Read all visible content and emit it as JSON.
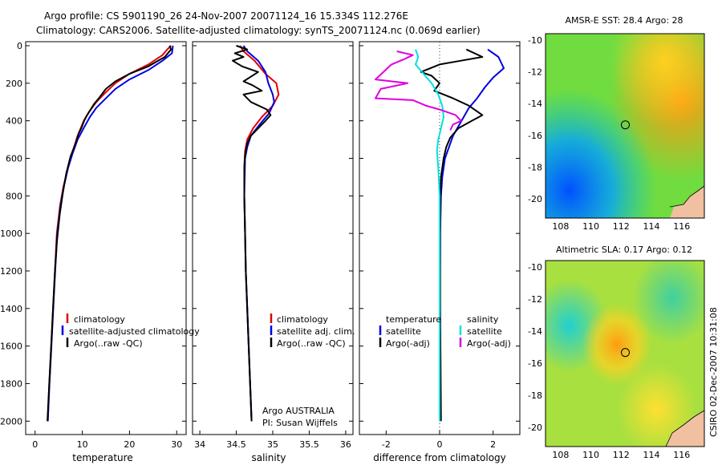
{
  "header": {
    "line1": "Argo profile: CS 5901190_26 24-Nov-2007 20071124_16 15.334S 112.276E",
    "line2": "Climatology: CARS2006. Satellite-adjusted climatology: synTS_20071124.nc (0.069d earlier)"
  },
  "footer": {
    "credit": "CSIRO 02-Dec-2007 10:31:08"
  },
  "colors": {
    "climatology": "#e00000",
    "satellite": "#0000e0",
    "argo": "#000000",
    "sat_salinity": "#00e0e0",
    "argo_salinity": "#e000e0"
  },
  "chart_data": [
    {
      "id": "temperature",
      "type": "line",
      "xlabel": "temperature",
      "ylabel": "",
      "xlim": [
        -2,
        32
      ],
      "ylim": [
        0,
        2050
      ],
      "y_reversed": true,
      "xticks": [
        "0",
        "10",
        "20",
        "30"
      ],
      "yticks": [
        "0",
        "200",
        "400",
        "600",
        "800",
        "1000",
        "1200",
        "1400",
        "1600",
        "1800",
        "2000"
      ],
      "legend": [
        "climatology",
        "satellite-adjusted climatology",
        "Argo(..raw -QC)"
      ],
      "series": [
        {
          "name": "climatology",
          "color": "#e00000",
          "points": [
            [
              28.8,
              0
            ],
            [
              28,
              20
            ],
            [
              27,
              50
            ],
            [
              24,
              100
            ],
            [
              20,
              150
            ],
            [
              17,
              200
            ],
            [
              14.5,
              260
            ],
            [
              13,
              300
            ],
            [
              11.5,
              350
            ],
            [
              10.3,
              400
            ],
            [
              9,
              480
            ],
            [
              8,
              560
            ],
            [
              7,
              650
            ],
            [
              6,
              750
            ],
            [
              5.3,
              850
            ],
            [
              4.6,
              1000
            ],
            [
              4.2,
              1200
            ],
            [
              3.8,
              1400
            ],
            [
              3.4,
              1600
            ],
            [
              3.0,
              1800
            ],
            [
              2.7,
              2000
            ]
          ]
        },
        {
          "name": "satellite",
          "color": "#0000e0",
          "points": [
            [
              29.2,
              0
            ],
            [
              29,
              40
            ],
            [
              27,
              80
            ],
            [
              24,
              130
            ],
            [
              20,
              180
            ],
            [
              17,
              230
            ],
            [
              15,
              280
            ],
            [
              13,
              330
            ],
            [
              11.6,
              380
            ],
            [
              10.5,
              430
            ],
            [
              9,
              500
            ],
            [
              8,
              570
            ],
            [
              7,
              650
            ],
            [
              6.1,
              750
            ],
            [
              5.4,
              850
            ],
            [
              4.7,
              1000
            ],
            [
              4.25,
              1200
            ],
            [
              3.85,
              1400
            ],
            [
              3.45,
              1600
            ],
            [
              3.05,
              1800
            ],
            [
              2.7,
              2000
            ]
          ]
        },
        {
          "name": "Argo",
          "color": "#000000",
          "points": [
            [
              28.5,
              0
            ],
            [
              28.8,
              20
            ],
            [
              27.5,
              60
            ],
            [
              24,
              110
            ],
            [
              20,
              150
            ],
            [
              17,
              190
            ],
            [
              15,
              230
            ],
            [
              13.5,
              280
            ],
            [
              12.5,
              310
            ],
            [
              12,
              330
            ],
            [
              11,
              370
            ],
            [
              10.4,
              400
            ],
            [
              9.8,
              440
            ],
            [
              9.2,
              470
            ],
            [
              8.6,
              520
            ],
            [
              7.5,
              590
            ],
            [
              6.6,
              680
            ],
            [
              5.9,
              780
            ],
            [
              5.2,
              900
            ],
            [
              4.6,
              1050
            ],
            [
              4.2,
              1200
            ],
            [
              3.8,
              1400
            ],
            [
              3.4,
              1600
            ],
            [
              3.0,
              1800
            ],
            [
              2.6,
              2000
            ]
          ]
        }
      ]
    },
    {
      "id": "salinity",
      "type": "line",
      "xlabel": "salinity",
      "ylabel": "",
      "xlim": [
        33.9,
        36.1
      ],
      "ylim": [
        0,
        2050
      ],
      "y_reversed": true,
      "xticks": [
        "34",
        "34.5",
        "35",
        "35.5",
        "36"
      ],
      "legend": [
        "climatology",
        "satellite adj. clim.",
        "Argo(..raw -QC)"
      ],
      "annotation": [
        "Argo AUSTRALIA",
        "PI: Susan Wijffels"
      ],
      "series": [
        {
          "name": "climatology",
          "color": "#e00000",
          "points": [
            [
              34.55,
              0
            ],
            [
              34.6,
              30
            ],
            [
              34.75,
              80
            ],
            [
              34.9,
              150
            ],
            [
              35.05,
              200
            ],
            [
              35.08,
              260
            ],
            [
              35.0,
              320
            ],
            [
              34.85,
              380
            ],
            [
              34.73,
              440
            ],
            [
              34.65,
              500
            ],
            [
              34.62,
              560
            ],
            [
              34.61,
              650
            ],
            [
              34.61,
              800
            ],
            [
              34.62,
              1000
            ],
            [
              34.63,
              1200
            ],
            [
              34.65,
              1400
            ],
            [
              34.67,
              1600
            ],
            [
              34.69,
              1800
            ],
            [
              34.71,
              2000
            ]
          ]
        },
        {
          "name": "satellite",
          "color": "#0000e0",
          "points": [
            [
              34.6,
              0
            ],
            [
              34.65,
              30
            ],
            [
              34.8,
              80
            ],
            [
              34.9,
              140
            ],
            [
              34.94,
              200
            ],
            [
              35.0,
              260
            ],
            [
              35.02,
              300
            ],
            [
              34.95,
              360
            ],
            [
              34.82,
              420
            ],
            [
              34.7,
              480
            ],
            [
              34.65,
              540
            ],
            [
              34.62,
              600
            ],
            [
              34.61,
              800
            ],
            [
              34.62,
              1000
            ],
            [
              34.63,
              1200
            ],
            [
              34.65,
              1400
            ],
            [
              34.67,
              1600
            ],
            [
              34.69,
              1800
            ],
            [
              34.71,
              2000
            ]
          ]
        },
        {
          "name": "Argo",
          "color": "#000000",
          "points": [
            [
              34.5,
              0
            ],
            [
              34.65,
              20
            ],
            [
              34.48,
              40
            ],
            [
              34.6,
              60
            ],
            [
              34.45,
              80
            ],
            [
              34.58,
              110
            ],
            [
              34.8,
              140
            ],
            [
              34.68,
              170
            ],
            [
              34.6,
              190
            ],
            [
              34.72,
              210
            ],
            [
              34.85,
              240
            ],
            [
              34.6,
              260
            ],
            [
              34.7,
              300
            ],
            [
              34.92,
              340
            ],
            [
              34.97,
              370
            ],
            [
              34.9,
              400
            ],
            [
              34.8,
              440
            ],
            [
              34.7,
              480
            ],
            [
              34.65,
              520
            ],
            [
              34.62,
              580
            ],
            [
              34.61,
              650
            ],
            [
              34.61,
              800
            ],
            [
              34.62,
              1000
            ],
            [
              34.63,
              1200
            ],
            [
              34.65,
              1400
            ],
            [
              34.67,
              1600
            ],
            [
              34.69,
              1800
            ],
            [
              34.71,
              2000
            ]
          ]
        }
      ]
    },
    {
      "id": "difference",
      "type": "line",
      "xlabel": "difference from climatology",
      "ylabel": "",
      "xlim": [
        -3,
        3
      ],
      "ylim": [
        0,
        2050
      ],
      "y_reversed": true,
      "xticks": [
        "-2",
        "0",
        "2"
      ],
      "legend_left": {
        "title": "temperature",
        "items": [
          "satellite",
          "Argo(-adj)"
        ]
      },
      "legend_right": {
        "title": "salinity",
        "items": [
          "satellite",
          "Argo(-adj)"
        ]
      },
      "series": [
        {
          "name": "temperature satellite",
          "color": "#0000e0",
          "points": [
            [
              1.8,
              20
            ],
            [
              2.2,
              60
            ],
            [
              2.4,
              120
            ],
            [
              2.0,
              170
            ],
            [
              1.7,
              220
            ],
            [
              1.4,
              280
            ],
            [
              1.1,
              330
            ],
            [
              0.9,
              380
            ],
            [
              0.7,
              430
            ],
            [
              0.5,
              480
            ],
            [
              0.35,
              540
            ],
            [
              0.2,
              600
            ],
            [
              0.1,
              700
            ],
            [
              0.05,
              800
            ],
            [
              0.02,
              1000
            ],
            [
              0.01,
              1400
            ],
            [
              0.0,
              2000
            ]
          ]
        },
        {
          "name": "temperature Argo",
          "color": "#000000",
          "points": [
            [
              1.0,
              20
            ],
            [
              1.6,
              60
            ],
            [
              0.8,
              80
            ],
            [
              0.0,
              100
            ],
            [
              -0.7,
              140
            ],
            [
              -0.3,
              160
            ],
            [
              0.0,
              200
            ],
            [
              -0.2,
              240
            ],
            [
              0.5,
              280
            ],
            [
              1.1,
              320
            ],
            [
              1.6,
              370
            ],
            [
              1.2,
              400
            ],
            [
              0.7,
              440
            ],
            [
              0.4,
              490
            ],
            [
              0.25,
              540
            ],
            [
              0.15,
              600
            ],
            [
              0.05,
              700
            ],
            [
              0.03,
              800
            ],
            [
              0.02,
              1000
            ],
            [
              0.02,
              1400
            ],
            [
              0.05,
              2000
            ]
          ]
        },
        {
          "name": "salinity satellite",
          "color": "#00e0e0",
          "points": [
            [
              -0.9,
              20
            ],
            [
              -0.8,
              60
            ],
            [
              -0.9,
              100
            ],
            [
              -0.6,
              150
            ],
            [
              -0.3,
              200
            ],
            [
              -0.05,
              260
            ],
            [
              0.1,
              320
            ],
            [
              0.15,
              380
            ],
            [
              0.05,
              440
            ],
            [
              -0.05,
              500
            ],
            [
              -0.1,
              560
            ],
            [
              -0.05,
              650
            ],
            [
              0.0,
              800
            ],
            [
              0.0,
              1000
            ],
            [
              0.0,
              1400
            ],
            [
              0.0,
              2000
            ]
          ]
        },
        {
          "name": "salinity Argo",
          "color": "#e000e0",
          "points": [
            [
              -1.6,
              30
            ],
            [
              -1.0,
              50
            ],
            [
              -1.3,
              70
            ],
            [
              -1.8,
              100
            ],
            [
              -2.4,
              180
            ],
            [
              -1.2,
              200
            ],
            [
              -2.2,
              230
            ],
            [
              -2.4,
              280
            ],
            [
              -1.0,
              290
            ],
            [
              -0.5,
              320
            ],
            [
              0.0,
              340
            ],
            [
              0.6,
              370
            ],
            [
              0.8,
              400
            ],
            [
              0.5,
              420
            ],
            [
              0.4,
              450
            ]
          ]
        }
      ]
    },
    {
      "id": "sst_map",
      "type": "heatmap",
      "title": "AMSR-E SST: 28.4 Argo: 28",
      "xlim": [
        107,
        117.5
      ],
      "ylim": [
        -21.2,
        -9.6
      ],
      "xticks": [
        "108",
        "110",
        "112",
        "114",
        "116"
      ],
      "yticks": [
        "-10",
        "-12",
        "-14",
        "-16",
        "-18",
        "-20"
      ],
      "marker": [
        112.276,
        -15.334
      ]
    },
    {
      "id": "sla_map",
      "type": "heatmap",
      "title": "Altimetric SLA: 0.17 Argo: 0.12",
      "xlim": [
        107,
        117.5
      ],
      "ylim": [
        -21.2,
        -9.6
      ],
      "xticks": [
        "108",
        "110",
        "112",
        "114",
        "116"
      ],
      "yticks": [
        "-10",
        "-12",
        "-14",
        "-16",
        "-18",
        "-20"
      ],
      "marker": [
        112.276,
        -15.334
      ]
    }
  ]
}
